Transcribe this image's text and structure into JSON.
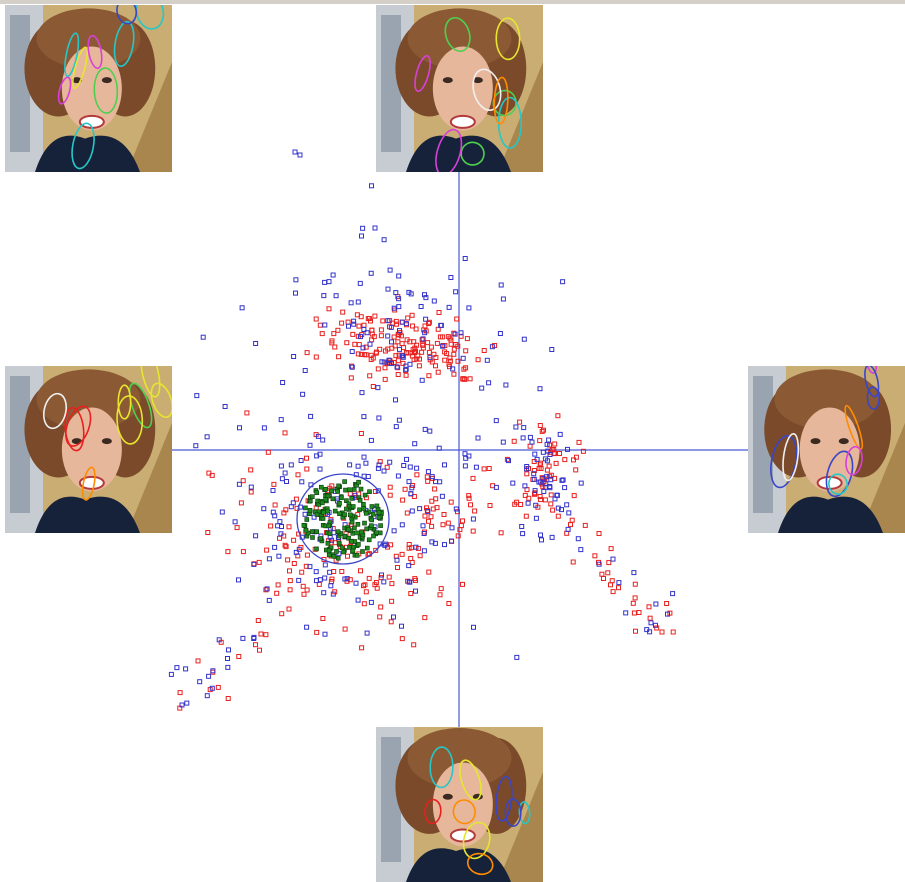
{
  "colors": {
    "axis": "#4b57d6",
    "class_red": "#e8201e",
    "class_blue": "#3333cc",
    "selected_green": "#1f8a1f",
    "selection_ellipse": "#3a46c8",
    "window_border": "#d4d0c8"
  },
  "thumbnails": [
    {
      "id": "top-left",
      "caption": ""
    },
    {
      "id": "top-center",
      "caption": ""
    },
    {
      "id": "middle-left",
      "caption": ""
    },
    {
      "id": "middle-right",
      "caption": ""
    },
    {
      "id": "bottom-center",
      "caption": ""
    }
  ],
  "icons": {
    "face": "face-thumbnail-icon"
  }
}
